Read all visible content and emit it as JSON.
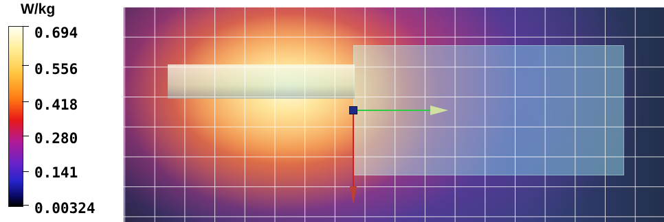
{
  "legend": {
    "unit": "W/kg",
    "labels": [
      "0.694",
      "0.556",
      "0.418",
      "0.280",
      "0.141",
      "0.00324"
    ],
    "colormap": [
      "#fffff2",
      "#ffef9a",
      "#ffc640",
      "#ff7a12",
      "#e81818",
      "#b01a96",
      "#6a22c8",
      "#2624cc",
      "#0a0a6a",
      "#000000"
    ]
  },
  "viewport": {
    "background": "#212a38",
    "grid_color": "#ffffff",
    "axes": {
      "x_color": "#2ecc40",
      "y_color": "#d02020",
      "origin_color": "#1c2a8a"
    }
  }
}
